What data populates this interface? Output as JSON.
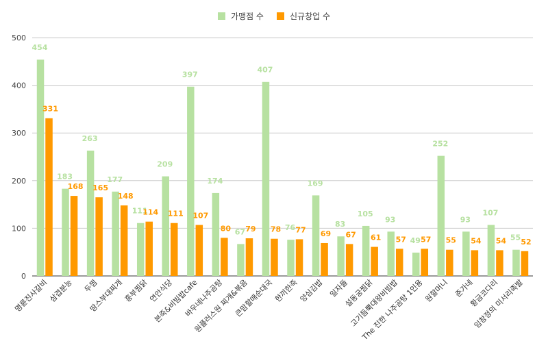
{
  "chart_data": {
    "type": "bar",
    "categories": [
      "명륜진사갈비",
      "삼겹분능",
      "두찜",
      "땅스부대찌개",
      "흥부찜닭",
      "연안식당",
      "본죽&비빔밥cafe",
      "바우네나주곰탕",
      "원플러스원 찌개&볶음",
      "큰맘할매순대국",
      "한끼한죽",
      "양심김밥",
      "일자들",
      "설동궁찜닭",
      "고기듬뿍대왕비빔밥",
      "The 진한 나주곰탕 1인용",
      "원할머니",
      "준가네",
      "황금코다리",
      "임창정의 미서리족발"
    ],
    "series": [
      {
        "name": "가맹점 수",
        "color": "#b7e1a1",
        "label_color": "#b7e1a1",
        "values": [
          454,
          183,
          263,
          177,
          111,
          209,
          397,
          174,
          67,
          407,
          76,
          169,
          83,
          105,
          93,
          49,
          252,
          93,
          107,
          55
        ],
        "labels": [
          "454",
          "183",
          "263",
          "177",
          "111",
          "209",
          "397",
          "174",
          "67",
          "407",
          "76",
          "169",
          "83",
          "105",
          "93",
          "49",
          "252",
          "93",
          "107",
          "55"
        ]
      },
      {
        "name": "신규창업 수",
        "color": "#ff9900",
        "label_color": "#ff9900",
        "values": [
          331,
          168,
          165,
          148,
          114,
          111,
          107,
          80,
          79,
          78,
          77,
          69,
          67,
          61,
          57,
          57,
          55,
          54,
          54,
          52
        ],
        "labels": [
          "331",
          "168",
          "165",
          "148",
          "114",
          "111",
          "107",
          "80",
          "79",
          "78",
          "77",
          "69",
          "67",
          "61",
          "57",
          "57",
          "55",
          "54",
          "54",
          "52"
        ]
      }
    ],
    "y_ticks": [
      "0",
      "100",
      "200",
      "300",
      "400",
      "500"
    ],
    "ylim": [
      0,
      500
    ],
    "grid": true,
    "legend_position": "top-center",
    "title": "",
    "xlabel": "",
    "ylabel": ""
  }
}
